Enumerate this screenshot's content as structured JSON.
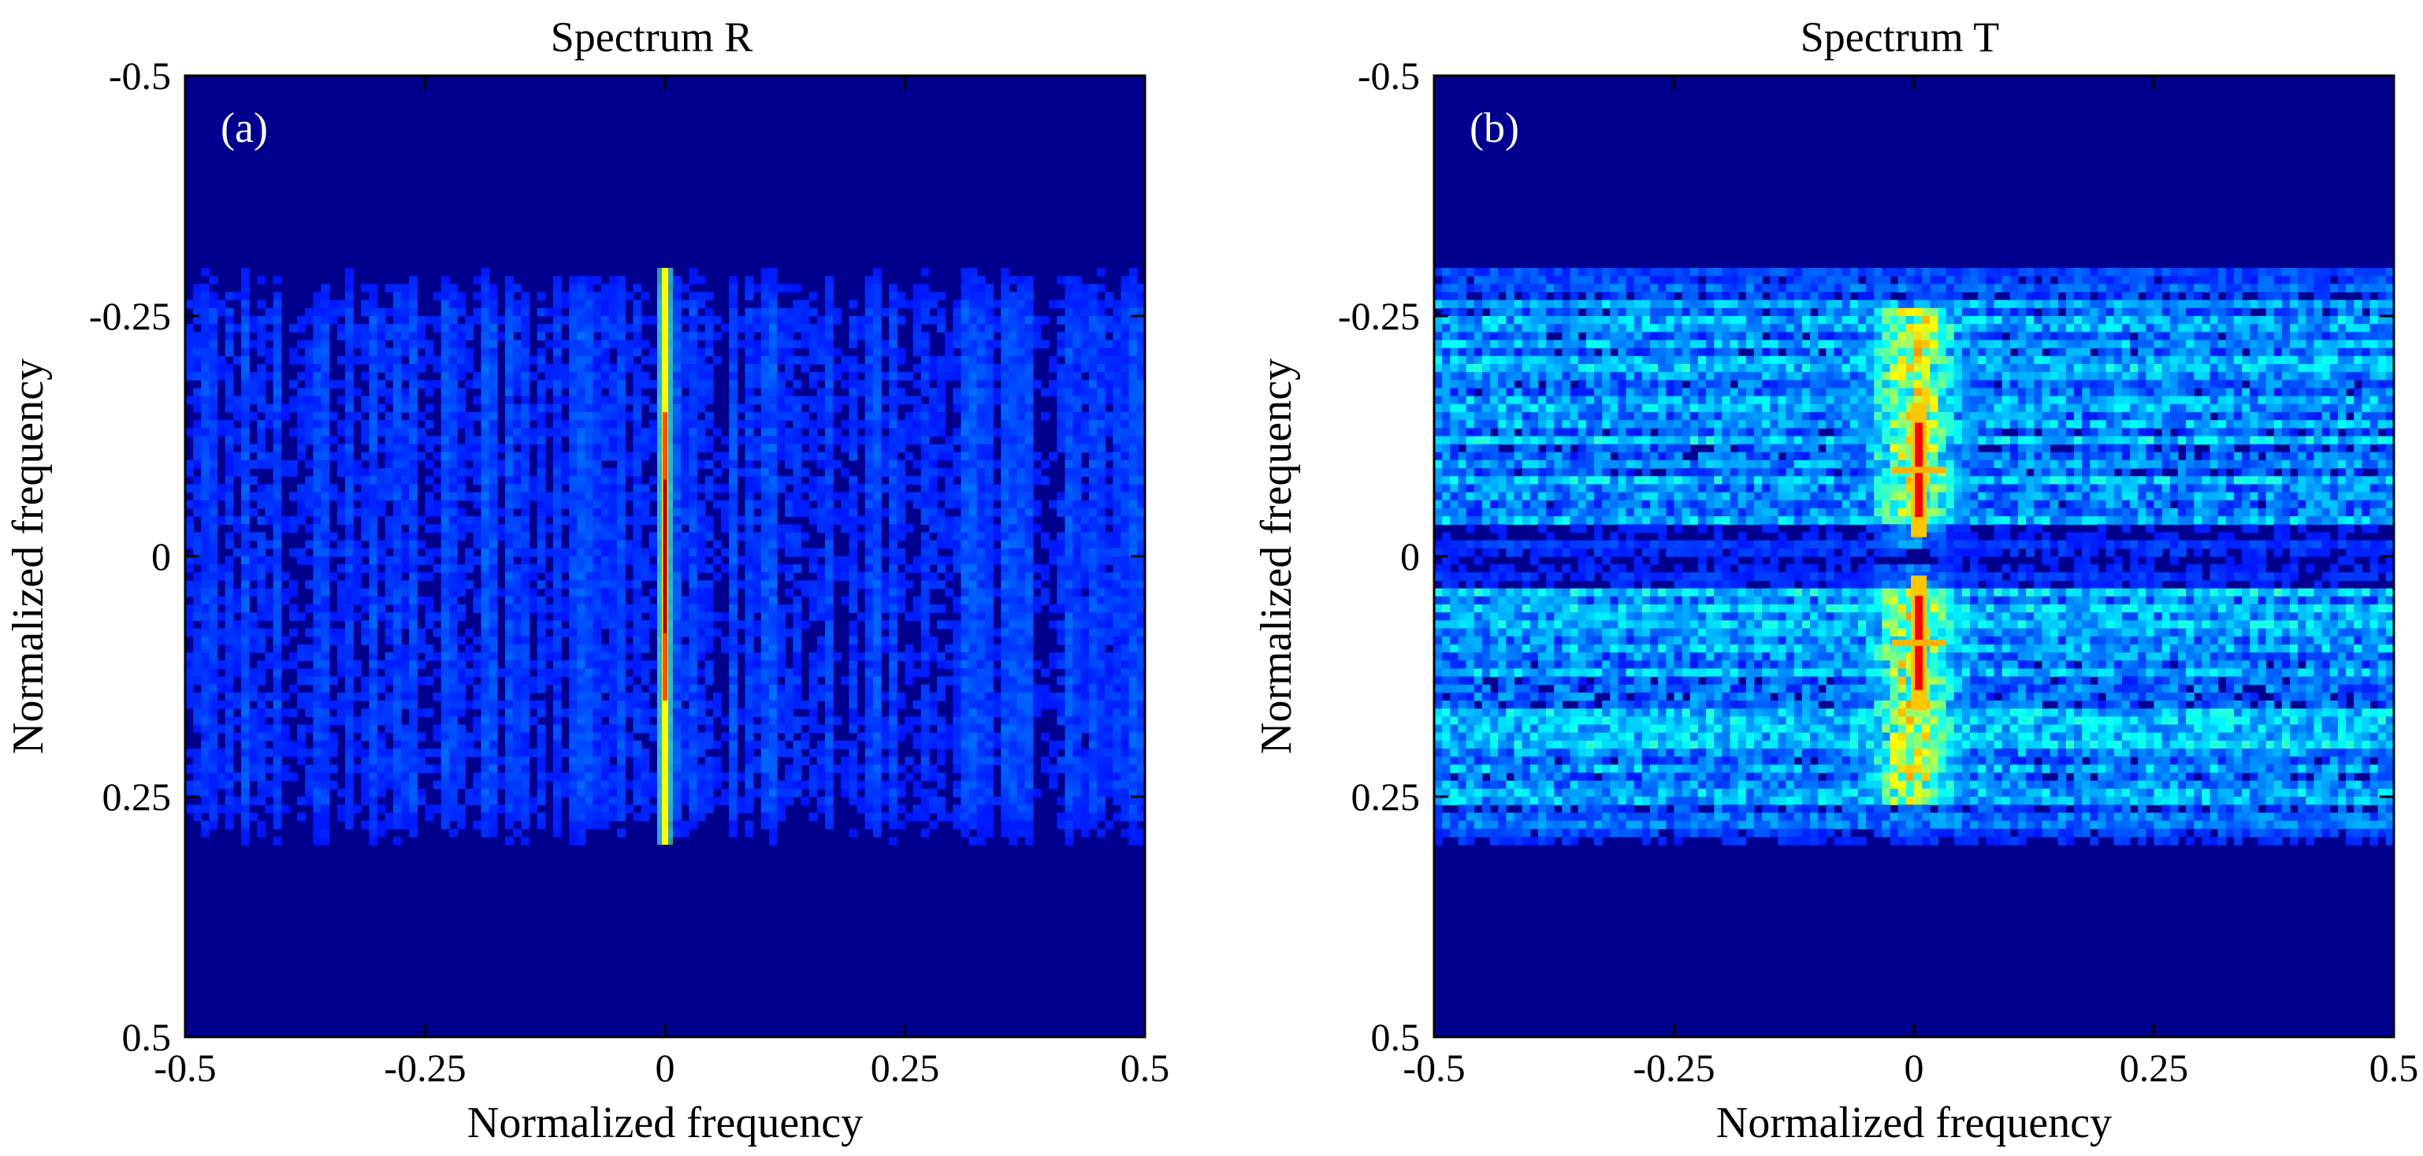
{
  "chart_data": [
    {
      "type": "heatmap",
      "panel_label": "(a)",
      "title": "Spectrum R",
      "xlabel": "Normalized frequency",
      "ylabel": "Normalized frequency",
      "xlim": [
        -0.5,
        0.5
      ],
      "ylim": [
        -0.5,
        0.5
      ],
      "y_reversed": true,
      "xticks": [
        -0.5,
        -0.25,
        0,
        0.25,
        0.5
      ],
      "yticks": [
        -0.5,
        -0.25,
        0,
        0.25,
        0.5
      ],
      "xtick_labels": [
        "-0.5",
        "-0.25",
        "0",
        "0.25",
        "0.5"
      ],
      "ytick_labels": [
        "-0.5",
        "-0.25",
        "0",
        "0.25",
        "0.5"
      ],
      "colormap": "jet",
      "background_color": "#00008f",
      "features": [
        {
          "shape": "vertical-line",
          "x": 0,
          "y_range": [
            -0.3,
            0.3
          ],
          "peak_y_range": [
            -0.15,
            0.15
          ],
          "intensity": 1.0
        },
        {
          "shape": "noise-band",
          "y_range": [
            -0.3,
            0.3
          ],
          "intensity": 0.18,
          "vertical_striations": true
        }
      ]
    },
    {
      "type": "heatmap",
      "panel_label": "(b)",
      "title": "Spectrum T",
      "xlabel": "Normalized frequency",
      "ylabel": "Normalized frequency",
      "xlim": [
        -0.5,
        0.5
      ],
      "ylim": [
        -0.5,
        0.5
      ],
      "y_reversed": true,
      "xticks": [
        -0.5,
        -0.25,
        0,
        0.25,
        0.5
      ],
      "yticks": [
        -0.5,
        -0.25,
        0,
        0.25,
        0.5
      ],
      "xtick_labels": [
        "-0.5",
        "-0.25",
        "0",
        "0.25",
        "0.5"
      ],
      "ytick_labels": [
        "-0.5",
        "-0.25",
        "0",
        "0.25",
        "0.5"
      ],
      "colormap": "jet",
      "background_color": "#00008f",
      "features": [
        {
          "shape": "noise-band",
          "y_range": [
            -0.3,
            0.3
          ],
          "intensity": 0.45,
          "horizontal_striations": true
        },
        {
          "shape": "dark-gap",
          "y_range": [
            -0.03,
            0.03
          ]
        },
        {
          "shape": "cluster",
          "x": 0,
          "y_range": [
            -0.26,
            -0.01
          ],
          "intensity": 0.85
        },
        {
          "shape": "cluster",
          "x": 0,
          "y_range": [
            0.01,
            0.26
          ],
          "intensity": 0.85
        },
        {
          "shape": "peak",
          "x": 0.005,
          "y_range": [
            -0.16,
            -0.02
          ],
          "intensity": 1.0
        },
        {
          "shape": "peak",
          "x": 0.005,
          "y_range": [
            0.02,
            0.16
          ],
          "intensity": 1.0
        }
      ]
    }
  ]
}
